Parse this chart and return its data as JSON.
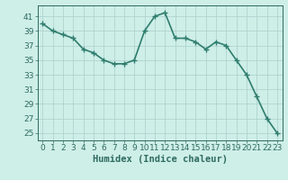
{
  "x": [
    0,
    1,
    2,
    3,
    4,
    5,
    6,
    7,
    8,
    9,
    10,
    11,
    12,
    13,
    14,
    15,
    16,
    17,
    18,
    19,
    20,
    21,
    22,
    23
  ],
  "y": [
    40,
    39,
    38.5,
    38,
    36.5,
    36,
    35,
    34.5,
    34.5,
    35,
    39,
    41,
    41.5,
    38,
    38,
    37.5,
    36.5,
    37.5,
    37,
    35,
    33,
    30,
    27,
    25
  ],
  "line_color": "#2e7d6e",
  "marker_color": "#2e7d6e",
  "bg_color": "#ceeee8",
  "grid_color": "#aacfca",
  "xlabel": "Humidex (Indice chaleur)",
  "yticks": [
    25,
    27,
    29,
    31,
    33,
    35,
    37,
    39,
    41
  ],
  "xticks": [
    0,
    1,
    2,
    3,
    4,
    5,
    6,
    7,
    8,
    9,
    10,
    11,
    12,
    13,
    14,
    15,
    16,
    17,
    18,
    19,
    20,
    21,
    22,
    23
  ],
  "ylim": [
    24,
    42.5
  ],
  "xlim": [
    -0.5,
    23.5
  ],
  "text_color": "#2e6b60",
  "font_size_xlabel": 7.5,
  "font_size_ticks": 6.5,
  "linewidth": 1.2,
  "markersize": 4,
  "marker": "+"
}
